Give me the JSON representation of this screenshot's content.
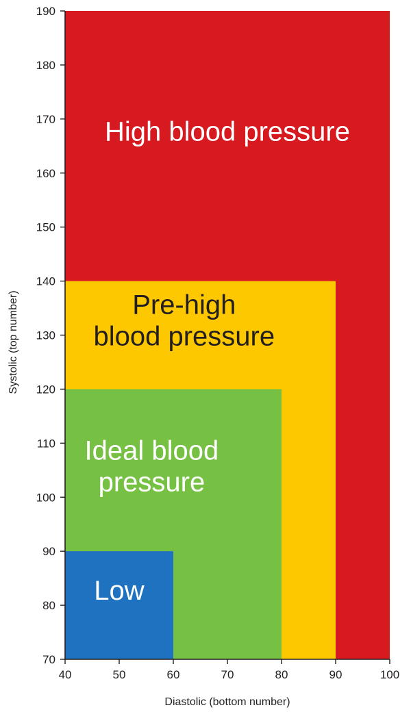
{
  "chart_data": {
    "type": "area",
    "title": "",
    "xlabel": "Diastolic (bottom number)",
    "ylabel": "Systolic (top number)",
    "xlim": [
      40,
      100
    ],
    "ylim": [
      70,
      190
    ],
    "x_ticks": [
      40,
      50,
      60,
      70,
      80,
      90,
      100
    ],
    "y_ticks": [
      70,
      80,
      90,
      100,
      110,
      120,
      130,
      140,
      150,
      160,
      170,
      180,
      190
    ],
    "grid": false,
    "legend": "none",
    "zones": [
      {
        "name": "high",
        "label_lines": [
          "High blood pressure"
        ],
        "diastolic_max": 100,
        "systolic_max": 190,
        "color": "#d71920",
        "text_color": "#ffffff",
        "label_at": {
          "x": 70,
          "y": 166
        }
      },
      {
        "name": "pre-high",
        "label_lines": [
          "Pre-high",
          "blood pressure"
        ],
        "diastolic_max": 90,
        "systolic_max": 140,
        "color": "#fdc800",
        "text_color": "#231f20",
        "label_at": {
          "x": 62,
          "y": 131
        }
      },
      {
        "name": "ideal",
        "label_lines": [
          "Ideal blood",
          "pressure"
        ],
        "diastolic_max": 80,
        "systolic_max": 120,
        "color": "#76c043",
        "text_color": "#ffffff",
        "label_at": {
          "x": 56,
          "y": 104
        }
      },
      {
        "name": "low",
        "label_lines": [
          "Low"
        ],
        "diastolic_max": 60,
        "systolic_max": 90,
        "color": "#1f72bf",
        "text_color": "#ffffff",
        "label_at": {
          "x": 50,
          "y": 81
        }
      }
    ]
  }
}
